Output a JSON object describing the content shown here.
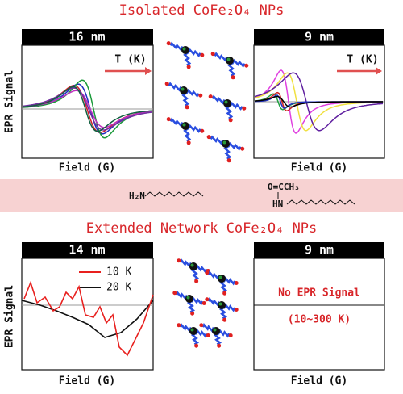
{
  "top": {
    "title": "Isolated CoFe₂O₄ NPs",
    "panels": [
      {
        "header": "16 nm",
        "arrow_label": "T (K)",
        "y_label": "EPR Signal",
        "x_label": "Field (G)"
      },
      {
        "header": "9 nm",
        "arrow_label": "T (K)",
        "x_label": "Field (G)"
      }
    ]
  },
  "ligands": {
    "amine": "H₂N",
    "acetamide_top": "O=CCH₃",
    "acetamide_nh": "HN"
  },
  "bottom": {
    "title": "Extended Network CoFe₂O₄ NPs",
    "panels": [
      {
        "header": "14 nm",
        "legend": [
          {
            "name": "10 K",
            "color": "#e8201e"
          },
          {
            "name": "20 K",
            "color": "#111111"
          }
        ],
        "y_label": "EPR Signal",
        "x_label": "Field (G)"
      },
      {
        "header": "9 nm",
        "message": "No EPR Signal",
        "range": "(10~300 K)",
        "x_label": "Field (G)"
      }
    ]
  }
}
